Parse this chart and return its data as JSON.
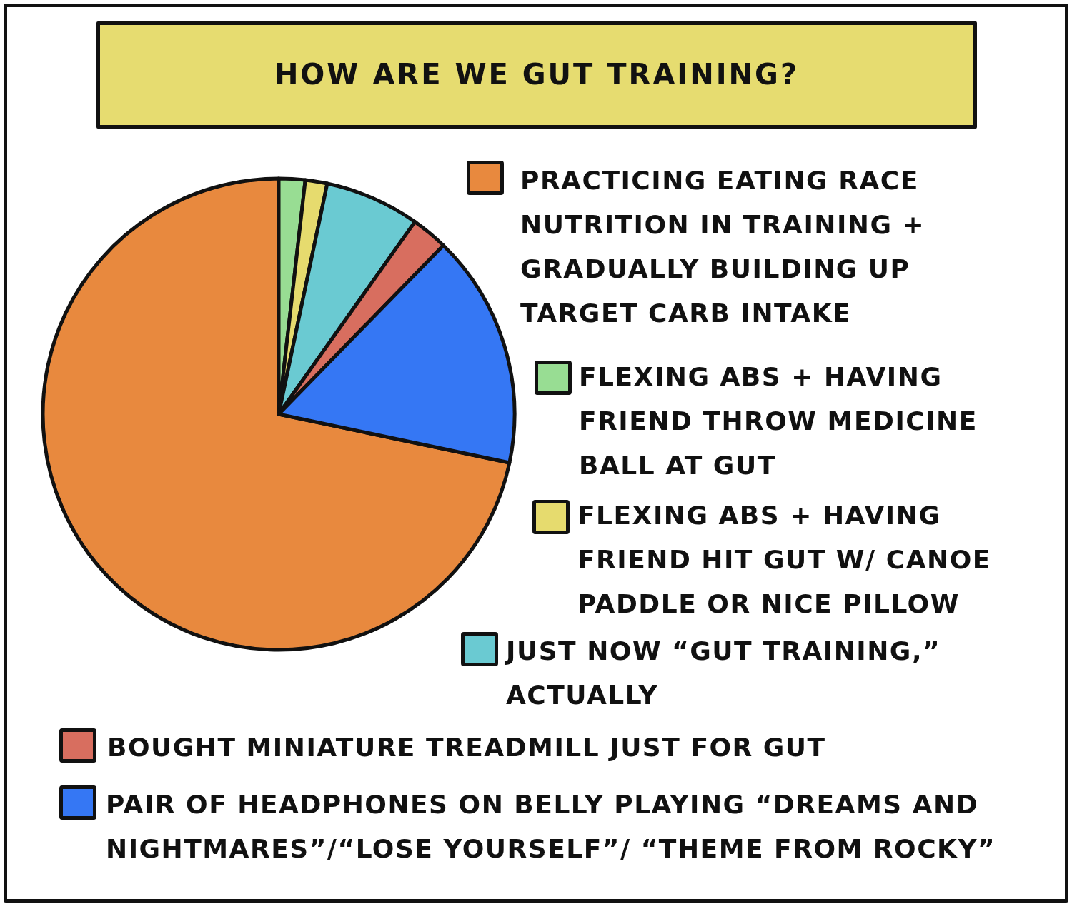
{
  "chart_data": {
    "type": "pie",
    "title": "HOW ARE WE GUT TRAINING?",
    "categories": [
      "PRACTICING EATING RACE NUTRITION IN TRAINING + GRADUALLY BUILDING UP TARGET CARB INTAKE",
      "FLEXING ABS + HAVING FRIEND THROW MEDICINE BALL AT GUT",
      "FLEXING ABS + HAVING FRIEND HIT GUT W/ CANOE PADDLE OR NICE PILLOW",
      "JUST NOW “GUT TRAINING,” ACTUALLY",
      "BOUGHT MINIATURE TREADMILL JUST FOR GUT",
      "PAIR OF HEADPHONES ON BELLY PLAYING “DREAMS AND NIGHTMARES”/“LOSE YOURSELF”/ “THEME FROM ROCKY”"
    ],
    "values": [
      71.7,
      1.8,
      1.5,
      6.5,
      2.5,
      16
    ],
    "colors": [
      "#e8893e",
      "#98dd93",
      "#e6db6e",
      "#6acad2",
      "#d86e5f",
      "#3577f4"
    ],
    "legend": "right"
  }
}
